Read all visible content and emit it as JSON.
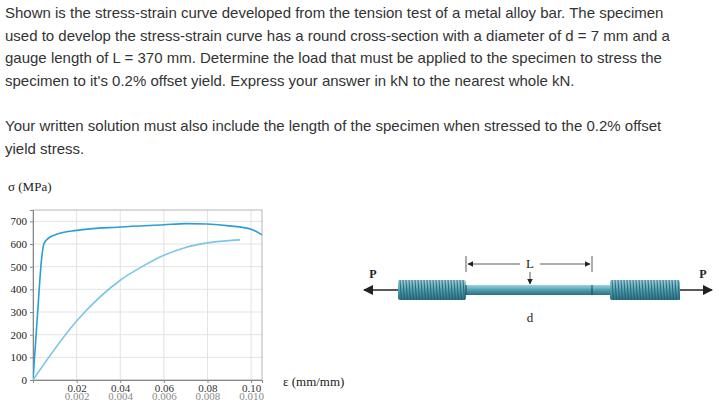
{
  "problem": {
    "paragraphs": [
      [
        "Shown is the stress-strain curve developed from the tension test of a metal alloy bar. The specimen",
        "used to develop the stress-strain curve has a round cross-section with a diameter of d = 7 mm and a",
        "gauge length of L = 370 mm. Determine the load that must be applied to the specimen to stress the",
        "specimen to it's 0.2% offset yield. Express your answer in kN to the nearest whole kN."
      ],
      [
        "Your written solution must also include the length of the specimen when stressed to the 0.2% offset",
        "yield stress."
      ]
    ]
  },
  "chart_data": {
    "type": "line",
    "y_label": "σ (MPa)",
    "x_label": "ε (mm/mm)",
    "xlim": [
      0,
      0.105
    ],
    "xticks": [
      0.02,
      0.04,
      0.06,
      0.08,
      {
        "value": 0.1,
        "label": "0.10"
      }
    ],
    "x2lim": [
      0,
      0.0105
    ],
    "x2ticks": [
      0.002,
      0.004,
      0.006,
      0.008,
      {
        "value": 0.01,
        "label": "0.010"
      }
    ],
    "ylim": [
      0,
      750
    ],
    "yticks": [
      0,
      100,
      200,
      300,
      400,
      500,
      600,
      700
    ],
    "grid": true,
    "series": [
      {
        "color": "#2a9fd6",
        "x": [
          0,
          0.002,
          0.004,
          0.005,
          0.007,
          0.01,
          0.02,
          0.04,
          0.06,
          0.07,
          0.08,
          0.09,
          0.1,
          0.105
        ],
        "values": [
          0,
          280,
          540,
          600,
          625,
          640,
          660,
          675,
          685,
          690,
          688,
          680,
          665,
          640
        ]
      },
      {
        "color": "#7cc6e6",
        "axis": "x2",
        "x": [
          0,
          0.002,
          0.004,
          0.005,
          0.006,
          0.007,
          0.008,
          0.009,
          0.0095
        ],
        "values": [
          0,
          260,
          440,
          500,
          550,
          585,
          605,
          615,
          618
        ]
      }
    ]
  },
  "diagram": {
    "load_left": "P",
    "load_right": "P",
    "length": "L",
    "diameter": "d"
  }
}
